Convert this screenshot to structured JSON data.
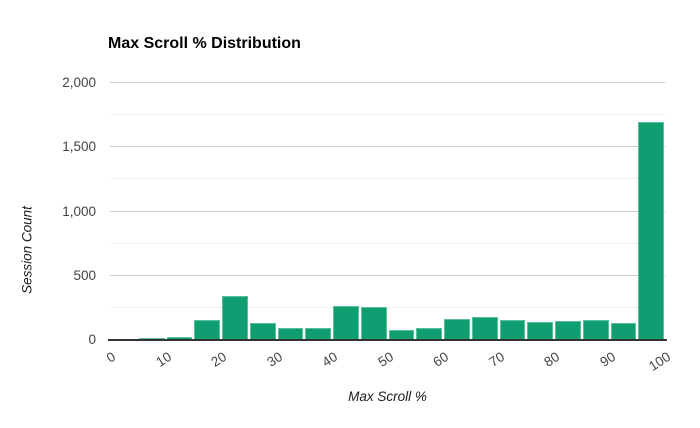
{
  "page": {
    "background": "#ffffff"
  },
  "chart_data": {
    "type": "bar",
    "subtype": "histogram",
    "title": "Max Scroll % Distribution",
    "xlabel": "Max Scroll %",
    "ylabel": "Session Count",
    "bin_width": 5,
    "categories": [
      "0-5",
      "5-10",
      "10-15",
      "15-20",
      "20-25",
      "25-30",
      "30-35",
      "35-40",
      "40-45",
      "45-50",
      "50-55",
      "55-60",
      "60-65",
      "65-70",
      "70-75",
      "75-80",
      "80-85",
      "85-90",
      "90-95",
      "95-100"
    ],
    "values": [
      0,
      15,
      25,
      155,
      345,
      130,
      90,
      90,
      265,
      255,
      75,
      95,
      160,
      180,
      155,
      140,
      150,
      155,
      135,
      1700
    ],
    "x_ticks": [
      0,
      10,
      20,
      30,
      40,
      50,
      60,
      70,
      80,
      90,
      100
    ],
    "y_ticks": [
      {
        "value": 0,
        "label": "0"
      },
      {
        "value": 500,
        "label": "500"
      },
      {
        "value": 1000,
        "label": "1,000"
      },
      {
        "value": 1500,
        "label": "1,500"
      },
      {
        "value": 2000,
        "label": "2,000"
      }
    ],
    "y_minor_ticks": [
      250,
      750,
      1250,
      1750
    ],
    "xlim": [
      0,
      100
    ],
    "ylim": [
      0,
      2000
    ],
    "grid": true,
    "legend_position": "none",
    "colors": {
      "bar_fill": "#0f9d72",
      "bar_edge": "#5cbf99",
      "grid_major": "#cccccc",
      "grid_minor": "#efefef",
      "axis_line": "#333333",
      "tick_text": "#444444",
      "title_text": "#000000",
      "axis_title_text": "#1c1c1c"
    }
  }
}
